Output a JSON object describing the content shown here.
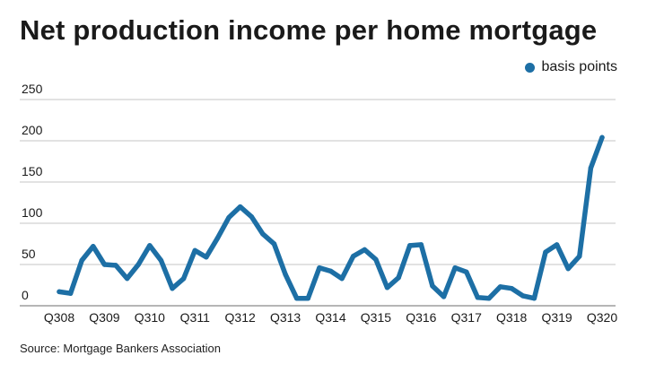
{
  "chart_data": {
    "type": "line",
    "title": "Net production income per home mortgage",
    "legend": "basis points",
    "source": "Source: Mortgage Bankers Association",
    "ylim": [
      0,
      250
    ],
    "yticks": [
      0,
      50,
      100,
      150,
      200,
      250
    ],
    "xtick_labels": [
      "Q308",
      "Q309",
      "Q310",
      "Q311",
      "Q312",
      "Q313",
      "Q314",
      "Q315",
      "Q316",
      "Q317",
      "Q318",
      "Q319",
      "Q320"
    ],
    "series": [
      {
        "name": "basis points",
        "color": "#1d6fa5",
        "values": [
          17,
          15,
          55,
          72,
          50,
          49,
          33,
          50,
          73,
          55,
          21,
          33,
          67,
          59,
          82,
          107,
          120,
          108,
          87,
          75,
          38,
          9,
          9,
          46,
          42,
          33,
          60,
          68,
          56,
          22,
          34,
          73,
          74,
          24,
          11,
          46,
          41,
          10,
          9,
          23,
          21,
          12,
          9,
          65,
          74,
          45,
          60,
          167,
          204
        ]
      }
    ]
  }
}
